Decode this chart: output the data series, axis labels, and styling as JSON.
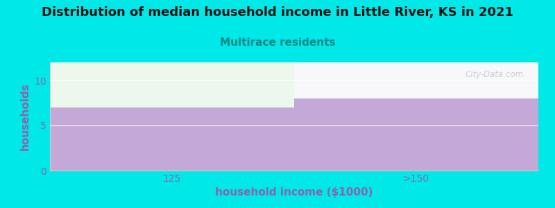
{
  "title": "Distribution of median household income in Little River, KS in 2021",
  "subtitle": "Multirace residents",
  "xlabel": "household income ($1000)",
  "ylabel": "households",
  "categories": [
    "125",
    ">150"
  ],
  "values": [
    7,
    8
  ],
  "ylim": [
    0,
    12
  ],
  "yticks": [
    0,
    5,
    10
  ],
  "bar_color": "#c4a8d8",
  "background_color": "#00e8e8",
  "title_fontsize": 13,
  "title_color": "#111111",
  "subtitle_color": "#008888",
  "subtitle_fontsize": 11,
  "axis_label_color": "#8866aa",
  "tick_color": "#8866aa",
  "watermark": "City-Data.com",
  "plot_bg_top_color": "#f0f8f0",
  "plot_bg_bottom_color": "#ffffff",
  "bar1_value": 7,
  "bar2_value": 8
}
